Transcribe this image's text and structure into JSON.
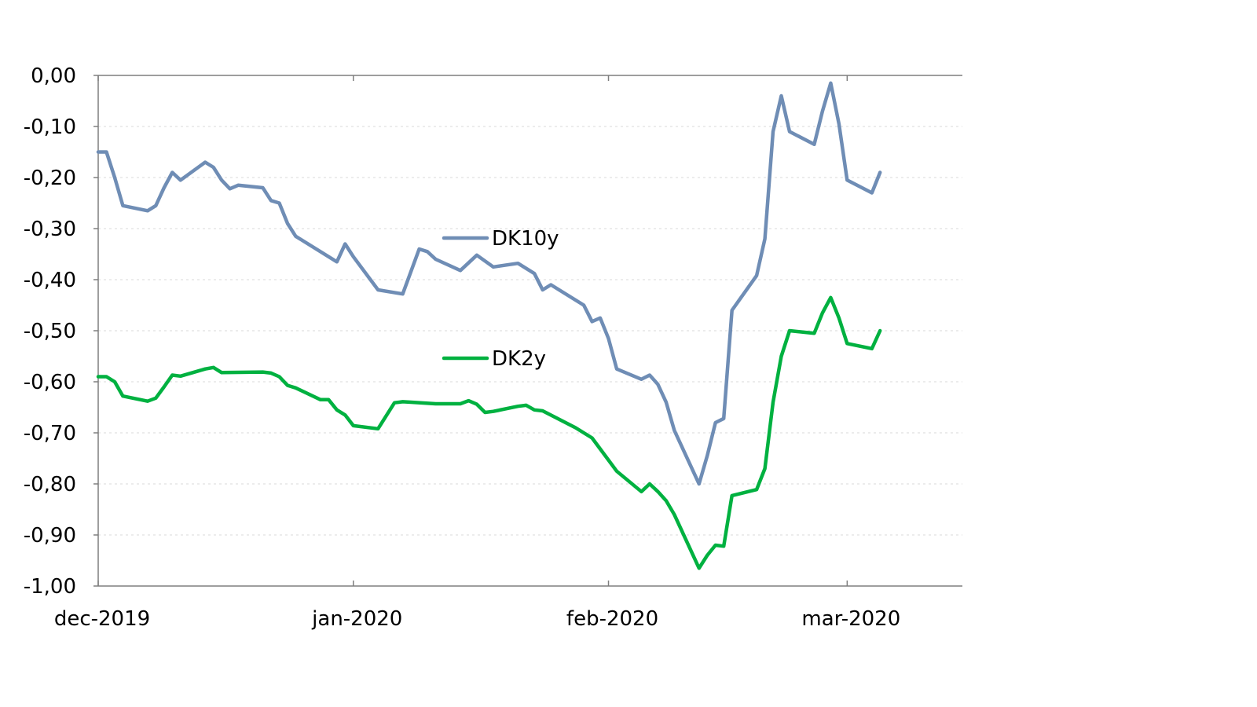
{
  "chart_data": {
    "type": "line",
    "title": "",
    "xlabel": "",
    "ylabel": "",
    "ylim": [
      -1.0,
      0.0
    ],
    "y_ticks": [
      0.0,
      -0.1,
      -0.2,
      -0.3,
      -0.4,
      -0.5,
      -0.6,
      -0.7,
      -0.8,
      -0.9,
      -1.0
    ],
    "y_tick_labels": [
      "0,00",
      "-0,10",
      "-0,20",
      "-0,30",
      "-0,40",
      "-0,50",
      "-0,60",
      "-0,70",
      "-0,80",
      "-0,90",
      "-1,00"
    ],
    "xlim": [
      "2019-12-01",
      "2020-03-15"
    ],
    "x_ticks": [
      {
        "date": "2019-12-01",
        "label": "dec-2019"
      },
      {
        "date": "2020-01-01",
        "label": "jan-2020"
      },
      {
        "date": "2020-02-01",
        "label": "feb-2020"
      },
      {
        "date": "2020-03-01",
        "label": "mar-2020"
      }
    ],
    "grid": true,
    "legend_position": "inline-center",
    "series": [
      {
        "name": "DK10y",
        "color": "#6f8db5",
        "points": [
          [
            "2019-12-01",
            -0.15
          ],
          [
            "2019-12-02",
            -0.15
          ],
          [
            "2019-12-03",
            -0.2
          ],
          [
            "2019-12-04",
            -0.255
          ],
          [
            "2019-12-07",
            -0.265
          ],
          [
            "2019-12-08",
            -0.255
          ],
          [
            "2019-12-09",
            -0.22
          ],
          [
            "2019-12-10",
            -0.19
          ],
          [
            "2019-12-11",
            -0.205
          ],
          [
            "2019-12-14",
            -0.17
          ],
          [
            "2019-12-15",
            -0.18
          ],
          [
            "2019-12-16",
            -0.205
          ],
          [
            "2019-12-17",
            -0.222
          ],
          [
            "2019-12-18",
            -0.215
          ],
          [
            "2019-12-21",
            -0.22
          ],
          [
            "2019-12-22",
            -0.245
          ],
          [
            "2019-12-23",
            -0.25
          ],
          [
            "2019-12-24",
            -0.29
          ],
          [
            "2019-12-25",
            -0.315
          ],
          [
            "2019-12-30",
            -0.365
          ],
          [
            "2019-12-31",
            -0.33
          ],
          [
            "2020-01-01",
            -0.355
          ],
          [
            "2020-01-04",
            -0.42
          ],
          [
            "2020-01-07",
            -0.428
          ],
          [
            "2020-01-09",
            -0.34
          ],
          [
            "2020-01-10",
            -0.345
          ],
          [
            "2020-01-11",
            -0.36
          ],
          [
            "2020-01-14",
            -0.382
          ],
          [
            "2020-01-16",
            -0.352
          ],
          [
            "2020-01-18",
            -0.375
          ],
          [
            "2020-01-21",
            -0.368
          ],
          [
            "2020-01-23",
            -0.388
          ],
          [
            "2020-01-24",
            -0.42
          ],
          [
            "2020-01-25",
            -0.41
          ],
          [
            "2020-01-29",
            -0.45
          ],
          [
            "2020-01-30",
            -0.482
          ],
          [
            "2020-01-31",
            -0.475
          ],
          [
            "2020-02-01",
            -0.515
          ],
          [
            "2020-02-02",
            -0.575
          ],
          [
            "2020-02-05",
            -0.595
          ],
          [
            "2020-02-06",
            -0.587
          ],
          [
            "2020-02-07",
            -0.605
          ],
          [
            "2020-02-08",
            -0.64
          ],
          [
            "2020-02-09",
            -0.695
          ],
          [
            "2020-02-12",
            -0.8
          ],
          [
            "2020-02-13",
            -0.745
          ],
          [
            "2020-02-14",
            -0.68
          ],
          [
            "2020-02-15",
            -0.672
          ],
          [
            "2020-02-16",
            -0.46
          ],
          [
            "2020-02-19",
            -0.392
          ],
          [
            "2020-02-20",
            -0.32
          ],
          [
            "2020-02-21",
            -0.11
          ],
          [
            "2020-02-22",
            -0.04
          ],
          [
            "2020-02-23",
            -0.11
          ],
          [
            "2020-02-26",
            -0.135
          ],
          [
            "2020-02-27",
            -0.07
          ],
          [
            "2020-02-28",
            -0.015
          ],
          [
            "2020-02-29",
            -0.095
          ],
          [
            "2020-03-01",
            -0.205
          ],
          [
            "2020-03-04",
            -0.23
          ],
          [
            "2020-03-05",
            -0.19
          ]
        ]
      },
      {
        "name": "DK2y",
        "color": "#00b140",
        "points": [
          [
            "2019-12-01",
            -0.59
          ],
          [
            "2019-12-02",
            -0.59
          ],
          [
            "2019-12-03",
            -0.6
          ],
          [
            "2019-12-04",
            -0.628
          ],
          [
            "2019-12-07",
            -0.638
          ],
          [
            "2019-12-08",
            -0.632
          ],
          [
            "2019-12-09",
            -0.61
          ],
          [
            "2019-12-10",
            -0.587
          ],
          [
            "2019-12-11",
            -0.589
          ],
          [
            "2019-12-14",
            -0.575
          ],
          [
            "2019-12-15",
            -0.572
          ],
          [
            "2019-12-16",
            -0.582
          ],
          [
            "2019-12-21",
            -0.581
          ],
          [
            "2019-12-22",
            -0.583
          ],
          [
            "2019-12-23",
            -0.59
          ],
          [
            "2019-12-24",
            -0.607
          ],
          [
            "2019-12-25",
            -0.612
          ],
          [
            "2019-12-28",
            -0.635
          ],
          [
            "2019-12-29",
            -0.635
          ],
          [
            "2019-12-30",
            -0.655
          ],
          [
            "2019-12-31",
            -0.665
          ],
          [
            "2020-01-01",
            -0.686
          ],
          [
            "2020-01-04",
            -0.692
          ],
          [
            "2020-01-06",
            -0.641
          ],
          [
            "2020-01-07",
            -0.639
          ],
          [
            "2020-01-08",
            -0.64
          ],
          [
            "2020-01-11",
            -0.643
          ],
          [
            "2020-01-14",
            -0.643
          ],
          [
            "2020-01-15",
            -0.637
          ],
          [
            "2020-01-16",
            -0.644
          ],
          [
            "2020-01-17",
            -0.66
          ],
          [
            "2020-01-18",
            -0.658
          ],
          [
            "2020-01-21",
            -0.648
          ],
          [
            "2020-01-22",
            -0.646
          ],
          [
            "2020-01-23",
            -0.655
          ],
          [
            "2020-01-24",
            -0.657
          ],
          [
            "2020-01-28",
            -0.69
          ],
          [
            "2020-01-30",
            -0.71
          ],
          [
            "2020-02-02",
            -0.775
          ],
          [
            "2020-02-05",
            -0.815
          ],
          [
            "2020-02-06",
            -0.8
          ],
          [
            "2020-02-07",
            -0.815
          ],
          [
            "2020-02-08",
            -0.833
          ],
          [
            "2020-02-09",
            -0.86
          ],
          [
            "2020-02-12",
            -0.965
          ],
          [
            "2020-02-13",
            -0.94
          ],
          [
            "2020-02-14",
            -0.92
          ],
          [
            "2020-02-15",
            -0.922
          ],
          [
            "2020-02-16",
            -0.823
          ],
          [
            "2020-02-19",
            -0.811
          ],
          [
            "2020-02-20",
            -0.77
          ],
          [
            "2020-02-21",
            -0.64
          ],
          [
            "2020-02-22",
            -0.55
          ],
          [
            "2020-02-23",
            -0.5
          ],
          [
            "2020-02-26",
            -0.505
          ],
          [
            "2020-02-27",
            -0.465
          ],
          [
            "2020-02-28",
            -0.435
          ],
          [
            "2020-02-29",
            -0.475
          ],
          [
            "2020-03-01",
            -0.525
          ],
          [
            "2020-03-04",
            -0.535
          ],
          [
            "2020-03-05",
            -0.5
          ]
        ]
      }
    ]
  }
}
